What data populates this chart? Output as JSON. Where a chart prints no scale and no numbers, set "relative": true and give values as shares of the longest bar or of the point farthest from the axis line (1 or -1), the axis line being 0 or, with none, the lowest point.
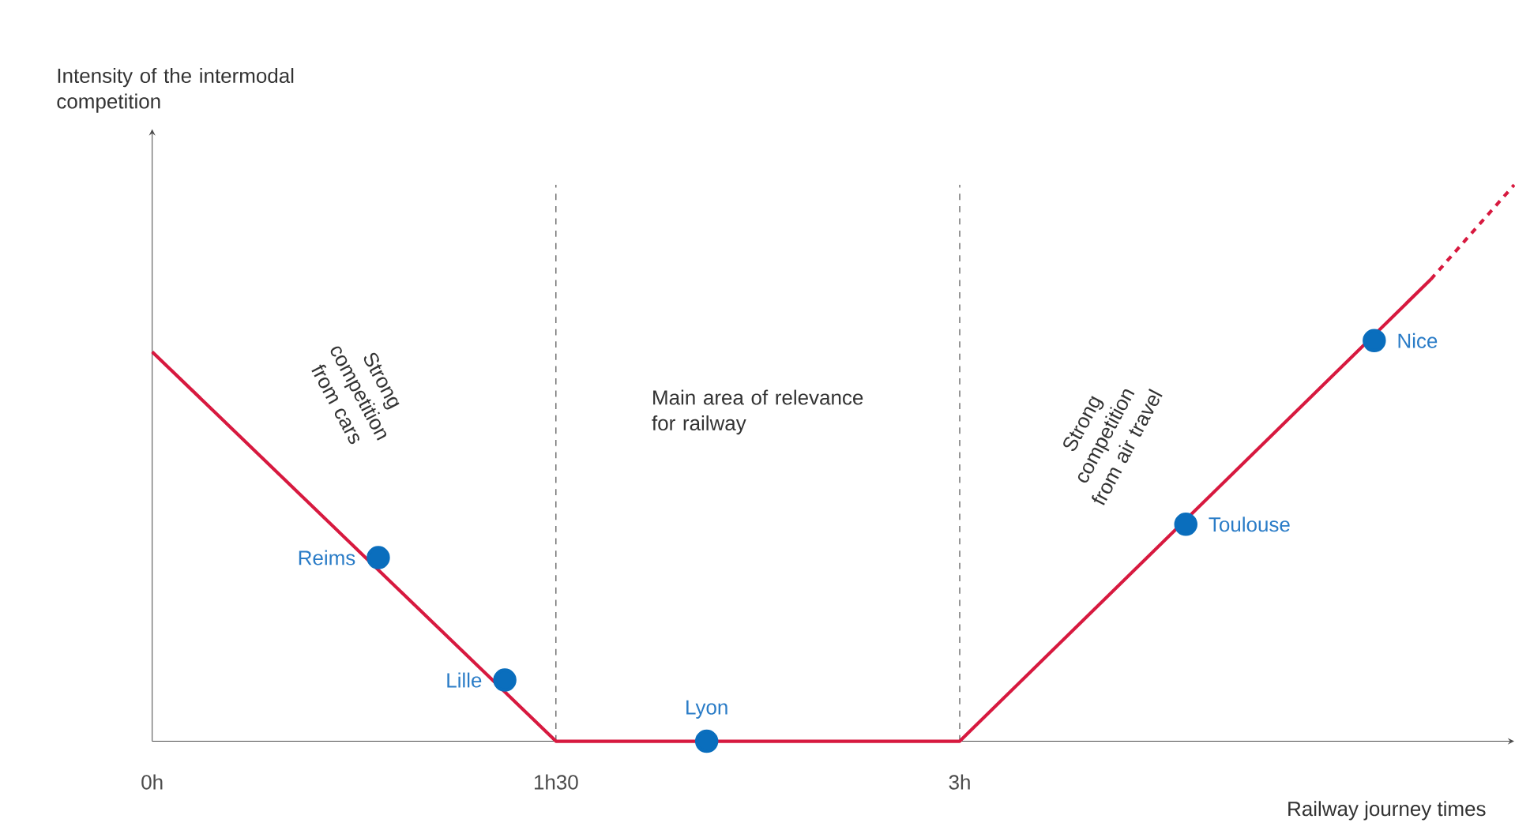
{
  "chart_data": {
    "type": "line",
    "relative": true,
    "xlabel": "Railway journey times",
    "ylabel": "Intensity of the intermodal competition",
    "xlim": [
      0,
      5.06
    ],
    "xticks": [
      {
        "value": 0,
        "label": "0h"
      },
      {
        "value": 1.5,
        "label": "1h30"
      },
      {
        "value": 3,
        "label": "3h"
      }
    ],
    "tick_labels": "x",
    "series": [
      {
        "color": "#d7193f",
        "x": [
          0,
          1.5,
          3,
          4.75
        ],
        "values": [
          0.7,
          0,
          0,
          0.83
        ],
        "line_style": "solid",
        "marker": "none"
      },
      {
        "color": "#d7193f",
        "x": [
          4.75,
          5.06
        ],
        "values": [
          0.83,
          1
        ],
        "line_style": "dashed",
        "marker": "none"
      },
      {
        "type": "scatter",
        "color": "#0a6ebd",
        "x": [
          0.84,
          1.31,
          2.06,
          3.84,
          4.54
        ],
        "values": [
          0.33,
          0.11,
          0,
          0.39,
          0.72
        ],
        "marker": "circle"
      }
    ],
    "ref_lines": [
      {
        "axis": "x",
        "value": 1.5,
        "line_style": "dashed",
        "color": "#333333"
      },
      {
        "axis": "x",
        "value": 3,
        "line_style": "dashed",
        "color": "#333333"
      }
    ],
    "annotations": [
      "Strong competition from cars",
      "Main area of relevance for railway",
      "Strong competition from air travel",
      {
        "text": "Reims",
        "x": 0.84,
        "y": 0.33
      },
      {
        "text": "Lille",
        "x": 1.31,
        "y": 0.11
      },
      {
        "text": "Lyon",
        "x": 2.06,
        "y": 0
      },
      {
        "text": "Toulouse",
        "x": 3.84,
        "y": 0.39
      },
      {
        "text": "Nice",
        "x": 4.54,
        "y": 0.72
      }
    ]
  }
}
